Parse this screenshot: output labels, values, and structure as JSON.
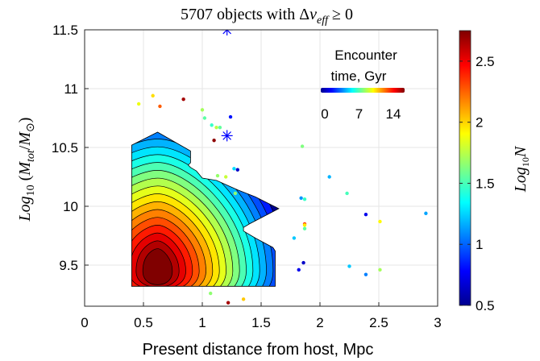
{
  "chart_data": {
    "type": "scatter",
    "title": "5707 objects with Δv_eff ≥ 0",
    "title_parts": {
      "prefix": "5707 objects with ",
      "delta": "Δ",
      "v": "v",
      "sub": "eff",
      "rel": " ≥ 0"
    },
    "xlabel": "Present distance from host, Mpc",
    "ylabel": {
      "log": "Log",
      "sub10": "10",
      "open": " (",
      "M": "M",
      "tot": "tot",
      "slash": "/",
      "M2": "M",
      "sun": "⊙",
      "close": ")"
    },
    "xlim": [
      0,
      3
    ],
    "ylim": [
      9.15,
      11.5
    ],
    "xticks": [
      "0",
      "0.5",
      "1",
      "1.5",
      "2",
      "2.5",
      "3"
    ],
    "yticks": [
      "9.5",
      "10",
      "10.5",
      "11",
      "11.5"
    ],
    "grid": true,
    "colorbar": {
      "label": {
        "log": "Log",
        "sub": "10",
        "N": "N"
      },
      "range": [
        0.5,
        2.75
      ],
      "ticks": [
        "0.5",
        "1",
        "1.5",
        "2",
        "2.5"
      ],
      "colormap": "jet"
    },
    "inset_legend": {
      "title_line1": "Encounter",
      "title_line2": "time, Gyr",
      "ticks": [
        "0",
        "7",
        "14"
      ],
      "range": [
        0,
        14
      ]
    },
    "contour_region": {
      "outline": [
        [
          0.4,
          9.32
        ],
        [
          0.4,
          10.52
        ],
        [
          0.62,
          10.63
        ],
        [
          0.9,
          10.47
        ],
        [
          0.9,
          10.37
        ],
        [
          0.88,
          10.35
        ],
        [
          0.9,
          10.33
        ],
        [
          0.95,
          10.3
        ],
        [
          1.0,
          10.24
        ],
        [
          1.12,
          10.22
        ],
        [
          1.3,
          10.14
        ],
        [
          1.45,
          10.08
        ],
        [
          1.65,
          9.98
        ],
        [
          1.4,
          9.85
        ],
        [
          1.35,
          9.82
        ],
        [
          1.35,
          9.79
        ],
        [
          1.45,
          9.73
        ],
        [
          1.6,
          9.65
        ],
        [
          1.62,
          9.62
        ],
        [
          1.62,
          9.32
        ]
      ],
      "peak": [
        0.62,
        9.45
      ],
      "levels": 18,
      "max_log10N": 2.75
    },
    "stars": [
      {
        "x": 1.21,
        "y": 11.5
      },
      {
        "x": 1.21,
        "y": 10.6
      }
    ],
    "points": [
      {
        "x": 0.46,
        "y": 10.87,
        "t": 8.5
      },
      {
        "x": 0.58,
        "y": 10.94,
        "t": 9.2
      },
      {
        "x": 0.64,
        "y": 10.85,
        "t": 11.0
      },
      {
        "x": 0.84,
        "y": 10.91,
        "t": 13.5
      },
      {
        "x": 1.0,
        "y": 10.82,
        "t": 7.5
      },
      {
        "x": 1.02,
        "y": 10.75,
        "t": 6.5
      },
      {
        "x": 1.08,
        "y": 10.69,
        "t": 6.0
      },
      {
        "x": 1.12,
        "y": 10.67,
        "t": 7.8
      },
      {
        "x": 1.15,
        "y": 10.67,
        "t": 6.6
      },
      {
        "x": 1.1,
        "y": 10.56,
        "t": 13.8
      },
      {
        "x": 1.24,
        "y": 10.76,
        "t": 2.0
      },
      {
        "x": 1.27,
        "y": 10.32,
        "t": 4.8
      },
      {
        "x": 1.3,
        "y": 10.31,
        "t": 1.0
      },
      {
        "x": 1.13,
        "y": 10.26,
        "t": 7.3
      },
      {
        "x": 1.2,
        "y": 10.25,
        "t": 8.0
      },
      {
        "x": 1.28,
        "y": 10.11,
        "t": 7.2
      },
      {
        "x": 1.85,
        "y": 10.51,
        "t": 7.0
      },
      {
        "x": 2.08,
        "y": 10.25,
        "t": 4.2
      },
      {
        "x": 2.23,
        "y": 10.11,
        "t": 6.2
      },
      {
        "x": 1.84,
        "y": 10.07,
        "t": 3.8
      },
      {
        "x": 1.87,
        "y": 10.06,
        "t": 6.0
      },
      {
        "x": 1.87,
        "y": 9.85,
        "t": 11.5
      },
      {
        "x": 1.87,
        "y": 9.84,
        "t": 9.0
      },
      {
        "x": 1.87,
        "y": 9.81,
        "t": 6.5
      },
      {
        "x": 1.78,
        "y": 9.73,
        "t": 4.5
      },
      {
        "x": 2.39,
        "y": 9.93,
        "t": 1.5
      },
      {
        "x": 2.51,
        "y": 9.87,
        "t": 8.8
      },
      {
        "x": 2.9,
        "y": 9.94,
        "t": 4.0
      },
      {
        "x": 2.25,
        "y": 9.49,
        "t": 4.5
      },
      {
        "x": 2.39,
        "y": 9.42,
        "t": 3.5
      },
      {
        "x": 2.51,
        "y": 9.46,
        "t": 7.5
      },
      {
        "x": 1.86,
        "y": 9.52,
        "t": 1.0
      },
      {
        "x": 1.82,
        "y": 9.46,
        "t": 1.5
      },
      {
        "x": 1.07,
        "y": 9.26,
        "t": 7.2
      },
      {
        "x": 1.35,
        "y": 9.21,
        "t": 9.5
      },
      {
        "x": 1.22,
        "y": 9.18,
        "t": 13.5
      }
    ]
  }
}
